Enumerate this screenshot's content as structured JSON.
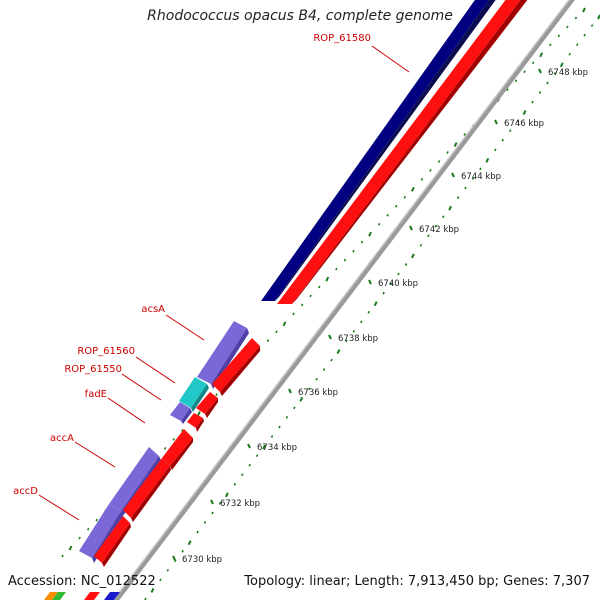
{
  "title": "Rhodococcus opacus B4, complete genome",
  "footer": {
    "accession": "Accession: NC_012522",
    "topology": "Topology: linear; Length: 7,913,450 bp; Genes: 7,307"
  },
  "colors": {
    "gene_blue": "#000080",
    "gene_purple": "#7b68d8",
    "gene_cyan": "#20c8c8",
    "gene_red": "#ff0000",
    "backbone": "#999999",
    "label_red": "#cc0000",
    "tick_green": "#1a7a1a"
  },
  "scale_labels": [
    "6748 kbp",
    "6746 kbp",
    "6744 kbp",
    "6742 kbp",
    "6740 kbp",
    "6738 kbp",
    "6736 kbp",
    "6734 kbp",
    "6732 kbp",
    "6730 kbp"
  ],
  "gene_labels": [
    "ROP_61580",
    "acsA",
    "ROP_61560",
    "ROP_61550",
    "fadE",
    "accA",
    "accD"
  ]
}
